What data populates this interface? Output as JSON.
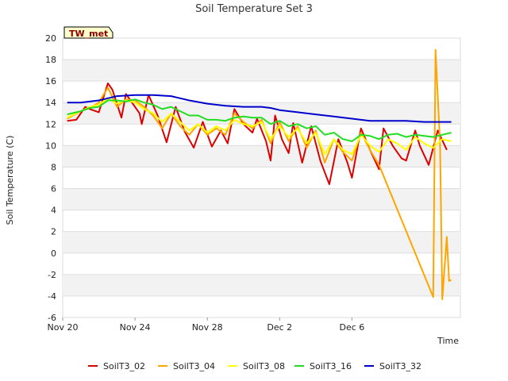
{
  "chart_data": {
    "type": "line",
    "title": "Soil Temperature Set 3",
    "xlabel": "Time",
    "ylabel": "Soil Temperature (C)",
    "badge": "TW_met",
    "x_unit": "days",
    "xlim": [
      "Nov 20",
      "Dec 8"
    ],
    "ylim": [
      -6,
      20
    ],
    "yticks": [
      -6,
      -4,
      -2,
      0,
      2,
      4,
      6,
      8,
      10,
      12,
      14,
      16,
      18,
      20
    ],
    "xticks": [
      {
        "label": "Nov 20",
        "date": "Nov 20"
      },
      {
        "label": "Nov 24",
        "date": "Nov 24"
      },
      {
        "label": "Nov 28",
        "date": "Nov 28"
      },
      {
        "label": "Dec 2",
        "date": "Dec 2"
      },
      {
        "label": "Dec 6",
        "date": "Dec 6"
      }
    ],
    "grid": "horizontal alternating bands",
    "legend_position": "bottom",
    "series": [
      {
        "name": "SoilT3_02",
        "color": "#dd0000",
        "points": [
          [
            "Nov 20 06:00",
            12.3
          ],
          [
            "Nov 20 18:00",
            12.4
          ],
          [
            "Nov 21 06:00",
            13.6
          ],
          [
            "Nov 21 12:00",
            13.4
          ],
          [
            "Nov 22 00:00",
            13.1
          ],
          [
            "Nov 22 12:00",
            15.8
          ],
          [
            "Nov 22 18:00",
            15.2
          ],
          [
            "Nov 23 06:00",
            12.6
          ],
          [
            "Nov 23 12:00",
            14.8
          ],
          [
            "Nov 23 18:00",
            14.2
          ],
          [
            "Nov 24 06:00",
            13.0
          ],
          [
            "Nov 24 09:00",
            12.0
          ],
          [
            "Nov 24 18:00",
            14.7
          ],
          [
            "Nov 25 06:00",
            12.8
          ],
          [
            "Nov 25 18:00",
            10.3
          ],
          [
            "Nov 26 06:00",
            13.6
          ],
          [
            "Nov 26 18:00",
            11.3
          ],
          [
            "Nov 27 06:00",
            9.8
          ],
          [
            "Nov 27 18:00",
            12.2
          ],
          [
            "Nov 28 06:00",
            9.9
          ],
          [
            "Nov 28 18:00",
            11.4
          ],
          [
            "Nov 29 03:00",
            10.2
          ],
          [
            "Nov 29 12:00",
            13.4
          ],
          [
            "Nov 30 00:00",
            12.0
          ],
          [
            "Nov 30 12:00",
            11.2
          ],
          [
            "Nov 30 18:00",
            12.5
          ],
          [
            "Dec 1 06:00",
            10.4
          ],
          [
            "Dec 1 12:00",
            8.6
          ],
          [
            "Dec 1 18:00",
            12.8
          ],
          [
            "Dec 2 03:00",
            10.6
          ],
          [
            "Dec 2 12:00",
            9.3
          ],
          [
            "Dec 2 18:00",
            12.1
          ],
          [
            "Dec 3 06:00",
            8.4
          ],
          [
            "Dec 3 18:00",
            11.8
          ],
          [
            "Dec 4 06:00",
            8.6
          ],
          [
            "Dec 4 18:00",
            6.4
          ],
          [
            "Dec 5 06:00",
            10.6
          ],
          [
            "Dec 5 18:00",
            8.4
          ],
          [
            "Dec 6 00:00",
            7.0
          ],
          [
            "Dec 6 12:00",
            11.6
          ],
          [
            "Dec 7 00:00",
            9.6
          ],
          [
            "Dec 7 12:00",
            7.8
          ],
          [
            "Dec 7 18:00",
            11.6
          ],
          [
            "Dec 8 06:00",
            10.0
          ],
          [
            "Dec 8 18:00",
            8.8
          ],
          [
            "Dec 9 00:00",
            8.6
          ],
          [
            "Dec 9 12:00",
            11.4
          ],
          [
            "Dec 9 18:00",
            10.0
          ],
          [
            "Dec 10 06:00",
            8.2
          ],
          [
            "Dec 10 18:00",
            11.4
          ],
          [
            "Dec 11 06:00",
            9.6
          ]
        ]
      },
      {
        "name": "SoilT3_04",
        "color": "#ffa500",
        "points": [
          [
            "Nov 20 06:00",
            12.5
          ],
          [
            "Nov 21 00:00",
            13.2
          ],
          [
            "Nov 21 12:00",
            13.5
          ],
          [
            "Nov 22 00:00",
            14.0
          ],
          [
            "Nov 22 12:00",
            15.4
          ],
          [
            "Nov 23 00:00",
            13.6
          ],
          [
            "Nov 23 12:00",
            14.3
          ],
          [
            "Nov 24 00:00",
            14.2
          ],
          [
            "Nov 24 12:00",
            13.6
          ],
          [
            "Nov 25 00:00",
            12.8
          ],
          [
            "Nov 25 12:00",
            11.6
          ],
          [
            "Nov 26 00:00",
            13.0
          ],
          [
            "Nov 26 12:00",
            11.8
          ],
          [
            "Nov 27 00:00",
            11.0
          ],
          [
            "Nov 27 12:00",
            12.0
          ],
          [
            "Nov 28 00:00",
            11.0
          ],
          [
            "Nov 28 12:00",
            11.6
          ],
          [
            "Nov 29 00:00",
            11.0
          ],
          [
            "Nov 29 12:00",
            13.0
          ],
          [
            "Nov 30 00:00",
            12.2
          ],
          [
            "Nov 30 12:00",
            11.6
          ],
          [
            "Dec 1 00:00",
            12.4
          ],
          [
            "Dec 1 12:00",
            10.2
          ],
          [
            "Dec 2 00:00",
            12.2
          ],
          [
            "Dec 2 12:00",
            10.4
          ],
          [
            "Dec 3 00:00",
            11.8
          ],
          [
            "Dec 3 12:00",
            9.8
          ],
          [
            "Dec 4 00:00",
            11.4
          ],
          [
            "Dec 4 12:00",
            8.4
          ],
          [
            "Dec 5 00:00",
            10.6
          ],
          [
            "Dec 5 12:00",
            9.4
          ],
          [
            "Dec 6 00:00",
            8.6
          ],
          [
            "Dec 6 12:00",
            11.2
          ],
          [
            "Dec 7 00:00",
            9.6
          ],
          [
            "Dec 7 12:00",
            8.2
          ],
          [
            "Dec 10 12:00",
            -4.1
          ],
          [
            "Dec 10 15:00",
            18.9
          ],
          [
            "Dec 10 21:00",
            10.2
          ],
          [
            "Dec 11 00:00",
            -4.3
          ],
          [
            "Dec 11 06:00",
            1.5
          ],
          [
            "Dec 11 09:00",
            -2.6
          ],
          [
            "Dec 11 12:00",
            -2.5
          ]
        ]
      },
      {
        "name": "SoilT3_08",
        "color": "#ffff00",
        "points": [
          [
            "Nov 20 06:00",
            12.6
          ],
          [
            "Nov 21 00:00",
            13.2
          ],
          [
            "Nov 21 12:00",
            13.6
          ],
          [
            "Nov 22 00:00",
            13.8
          ],
          [
            "Nov 22 12:00",
            14.4
          ],
          [
            "Nov 23 00:00",
            13.9
          ],
          [
            "Nov 23 12:00",
            14.2
          ],
          [
            "Nov 24 00:00",
            14.0
          ],
          [
            "Nov 24 12:00",
            13.4
          ],
          [
            "Nov 25 00:00",
            13.0
          ],
          [
            "Nov 25 12:00",
            12.2
          ],
          [
            "Nov 26 00:00",
            13.0
          ],
          [
            "Nov 26 12:00",
            12.2
          ],
          [
            "Nov 27 00:00",
            11.4
          ],
          [
            "Nov 27 12:00",
            12.0
          ],
          [
            "Nov 28 00:00",
            11.2
          ],
          [
            "Nov 28 12:00",
            11.8
          ],
          [
            "Nov 29 00:00",
            11.4
          ],
          [
            "Nov 29 12:00",
            12.4
          ],
          [
            "Nov 30 00:00",
            12.0
          ],
          [
            "Nov 30 12:00",
            11.8
          ],
          [
            "Dec 1 00:00",
            12.2
          ],
          [
            "Dec 1 12:00",
            10.6
          ],
          [
            "Dec 2 00:00",
            11.8
          ],
          [
            "Dec 2 12:00",
            10.8
          ],
          [
            "Dec 3 00:00",
            11.6
          ],
          [
            "Dec 3 12:00",
            10.2
          ],
          [
            "Dec 4 00:00",
            11.2
          ],
          [
            "Dec 4 12:00",
            9.2
          ],
          [
            "Dec 5 00:00",
            10.6
          ],
          [
            "Dec 5 12:00",
            9.6
          ],
          [
            "Dec 6 00:00",
            9.2
          ],
          [
            "Dec 6 12:00",
            11.0
          ],
          [
            "Dec 7 00:00",
            10.0
          ],
          [
            "Dec 7 12:00",
            9.4
          ],
          [
            "Dec 8 00:00",
            10.6
          ],
          [
            "Dec 8 12:00",
            10.2
          ],
          [
            "Dec 9 00:00",
            9.6
          ],
          [
            "Dec 9 12:00",
            10.8
          ],
          [
            "Dec 10 00:00",
            10.2
          ],
          [
            "Dec 10 12:00",
            9.8
          ],
          [
            "Dec 11 00:00",
            10.6
          ],
          [
            "Dec 11 12:00",
            10.4
          ]
        ]
      },
      {
        "name": "SoilT3_16",
        "color": "#22dd22",
        "points": [
          [
            "Nov 20 06:00",
            12.9
          ],
          [
            "Nov 21 00:00",
            13.2
          ],
          [
            "Nov 21 12:00",
            13.5
          ],
          [
            "Nov 22 00:00",
            13.6
          ],
          [
            "Nov 22 12:00",
            14.2
          ],
          [
            "Nov 23 00:00",
            14.2
          ],
          [
            "Nov 23 12:00",
            14.1
          ],
          [
            "Nov 24 00:00",
            14.3
          ],
          [
            "Nov 24 12:00",
            14.0
          ],
          [
            "Nov 25 00:00",
            13.8
          ],
          [
            "Nov 25 12:00",
            13.4
          ],
          [
            "Nov 26 00:00",
            13.6
          ],
          [
            "Nov 26 12:00",
            13.2
          ],
          [
            "Nov 27 00:00",
            12.8
          ],
          [
            "Nov 27 12:00",
            12.8
          ],
          [
            "Nov 28 00:00",
            12.4
          ],
          [
            "Nov 28 12:00",
            12.4
          ],
          [
            "Nov 29 00:00",
            12.3
          ],
          [
            "Nov 29 12:00",
            12.6
          ],
          [
            "Nov 30 00:00",
            12.7
          ],
          [
            "Nov 30 12:00",
            12.6
          ],
          [
            "Dec 1 00:00",
            12.6
          ],
          [
            "Dec 1 12:00",
            12.0
          ],
          [
            "Dec 2 00:00",
            12.3
          ],
          [
            "Dec 2 12:00",
            11.8
          ],
          [
            "Dec 3 00:00",
            12.0
          ],
          [
            "Dec 3 12:00",
            11.6
          ],
          [
            "Dec 4 00:00",
            11.8
          ],
          [
            "Dec 4 12:00",
            11.0
          ],
          [
            "Dec 5 00:00",
            11.2
          ],
          [
            "Dec 5 12:00",
            10.6
          ],
          [
            "Dec 6 00:00",
            10.4
          ],
          [
            "Dec 6 12:00",
            11.0
          ],
          [
            "Dec 7 00:00",
            10.9
          ],
          [
            "Dec 7 12:00",
            10.6
          ],
          [
            "Dec 8 00:00",
            11.0
          ],
          [
            "Dec 8 12:00",
            11.1
          ],
          [
            "Dec 9 00:00",
            10.8
          ],
          [
            "Dec 9 12:00",
            11.0
          ],
          [
            "Dec 10 00:00",
            10.9
          ],
          [
            "Dec 10 12:00",
            10.8
          ],
          [
            "Dec 11 00:00",
            11.0
          ],
          [
            "Dec 11 12:00",
            11.2
          ]
        ]
      },
      {
        "name": "SoilT3_32",
        "color": "#0000cc",
        "points": [
          [
            "Nov 20 06:00",
            14.0
          ],
          [
            "Nov 21 00:00",
            14.0
          ],
          [
            "Nov 22 00:00",
            14.2
          ],
          [
            "Nov 22 12:00",
            14.4
          ],
          [
            "Nov 23 00:00",
            14.6
          ],
          [
            "Nov 24 00:00",
            14.7
          ],
          [
            "Nov 25 00:00",
            14.7
          ],
          [
            "Nov 26 00:00",
            14.6
          ],
          [
            "Nov 26 12:00",
            14.4
          ],
          [
            "Nov 27 00:00",
            14.2
          ],
          [
            "Nov 28 00:00",
            13.9
          ],
          [
            "Nov 29 00:00",
            13.7
          ],
          [
            "Nov 30 00:00",
            13.6
          ],
          [
            "Dec 1 00:00",
            13.6
          ],
          [
            "Dec 1 12:00",
            13.5
          ],
          [
            "Dec 2 00:00",
            13.3
          ],
          [
            "Dec 3 00:00",
            13.1
          ],
          [
            "Dec 4 00:00",
            12.9
          ],
          [
            "Dec 5 00:00",
            12.7
          ],
          [
            "Dec 6 00:00",
            12.5
          ],
          [
            "Dec 7 00:00",
            12.3
          ],
          [
            "Dec 8 00:00",
            12.3
          ],
          [
            "Dec 9 00:00",
            12.3
          ],
          [
            "Dec 10 00:00",
            12.2
          ],
          [
            "Dec 11 00:00",
            12.2
          ],
          [
            "Dec 11 12:00",
            12.2
          ]
        ]
      }
    ]
  }
}
